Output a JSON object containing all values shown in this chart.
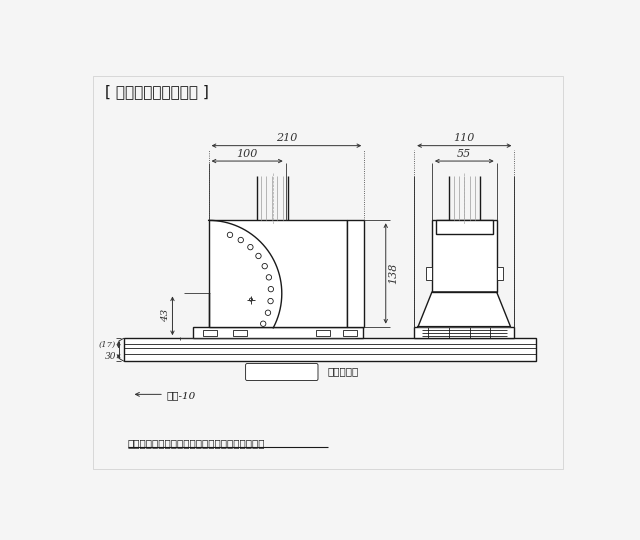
{
  "title": "[ 機構設計用位置情報 ]",
  "footnote": "調整機構を含む寸法値は、調整機構のセンター値",
  "text_material": "材質：ゴム",
  "text_width": "全幅-10",
  "bg_color": "#f5f5f5",
  "line_color": "#1a1a1a",
  "dim_color": "#333333",
  "gray_color": "#aaaaaa",
  "dim_210": "210",
  "dim_100": "100",
  "dim_110": "110",
  "dim_55": "55",
  "dim_138": "138",
  "dim_43": "43",
  "dim_17": "(17)",
  "dim_30": "30"
}
